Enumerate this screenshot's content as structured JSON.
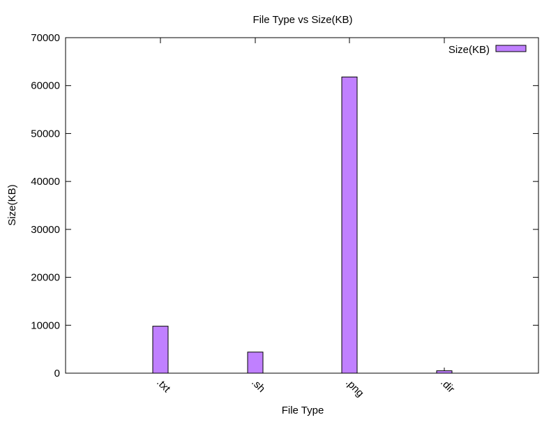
{
  "chart_data": {
    "type": "bar",
    "title": "File Type vs Size(KB)",
    "xlabel": "File Type",
    "ylabel": "Size(KB)",
    "categories": [
      ".txt",
      ".sh",
      ".png",
      ".dir"
    ],
    "series": [
      {
        "name": "Size(KB)",
        "values": [
          9800,
          4400,
          61800,
          500
        ],
        "color": "#c080ff"
      }
    ],
    "yticks": [
      0,
      10000,
      20000,
      30000,
      40000,
      50000,
      60000,
      70000
    ],
    "ylim": [
      0,
      70000
    ],
    "grid": false,
    "legend_position": "top-right"
  }
}
